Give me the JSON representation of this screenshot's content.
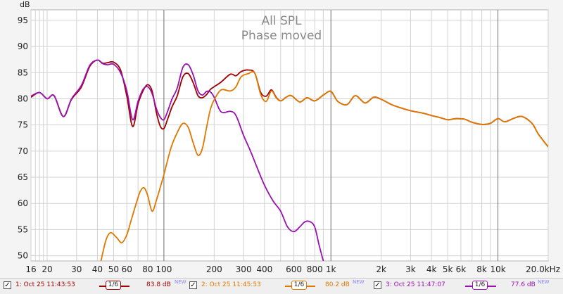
{
  "chart_data": {
    "type": "line",
    "title": "All SPL",
    "subtitle": "Phase moved",
    "ylabel": "dB",
    "xscale": "log",
    "xlim": [
      16,
      20000
    ],
    "ylim": [
      49,
      97
    ],
    "yticks": [
      50,
      55,
      60,
      65,
      70,
      75,
      80,
      85,
      90,
      95
    ],
    "xtick_labels": [
      {
        "v": 16,
        "t": "16"
      },
      {
        "v": 20,
        "t": "20"
      },
      {
        "v": 30,
        "t": "30"
      },
      {
        "v": 40,
        "t": "40"
      },
      {
        "v": 50,
        "t": "50"
      },
      {
        "v": 60,
        "t": "60"
      },
      {
        "v": 80,
        "t": "80"
      },
      {
        "v": 100,
        "t": "100"
      },
      {
        "v": 200,
        "t": "200"
      },
      {
        "v": 300,
        "t": "300"
      },
      {
        "v": 400,
        "t": "400"
      },
      {
        "v": 600,
        "t": "600"
      },
      {
        "v": 800,
        "t": "800"
      },
      {
        "v": 1000,
        "t": "1k"
      },
      {
        "v": 2000,
        "t": "2k"
      },
      {
        "v": 3000,
        "t": "3k"
      },
      {
        "v": 4000,
        "t": "4k"
      },
      {
        "v": 5000,
        "t": "5k"
      },
      {
        "v": 6000,
        "t": "6k"
      },
      {
        "v": 8000,
        "t": "8k"
      },
      {
        "v": 10000,
        "t": "10k"
      },
      {
        "v": 20000,
        "t": "20.0kHz"
      }
    ],
    "grid": true,
    "legend_position": "bottom",
    "series": [
      {
        "name": "1: Oct 25 11:43:53",
        "color": "#a00000",
        "smoothing": "1/6",
        "level": "83.8 dB",
        "x": [
          16,
          18,
          20,
          22,
          25,
          28,
          32,
          36,
          40,
          43,
          46,
          50,
          55,
          60,
          65,
          70,
          75,
          80,
          85,
          90,
          95,
          100,
          105,
          112,
          120,
          130,
          140,
          150,
          160,
          170,
          180,
          190,
          200,
          220,
          250,
          270,
          290,
          320,
          350,
          380,
          410,
          440,
          470,
          500,
          540,
          580,
          650,
          720,
          800,
          900,
          1000,
          1100,
          1250,
          1400,
          1600,
          1800,
          2000,
          2300,
          2600,
          3000,
          3500,
          4000,
          4500,
          5000,
          5600,
          6300,
          7000,
          8000,
          9000,
          10000,
          11000,
          12500,
          14000,
          16000,
          17500,
          20000
        ],
        "y": [
          80.3,
          81.2,
          80,
          80.6,
          76.6,
          79.9,
          82.2,
          86.2,
          87.4,
          86.8,
          86.9,
          87,
          85.5,
          80.5,
          74.7,
          79,
          81.5,
          82.7,
          81.5,
          77.5,
          74.8,
          74.3,
          76,
          78.5,
          80.5,
          84.2,
          84.8,
          83,
          80.6,
          80.2,
          80.8,
          81.8,
          82.3,
          83.2,
          84.7,
          84.4,
          85.2,
          85.5,
          84.9,
          81.2,
          80.5,
          81.7,
          80.3,
          79.6,
          80.3,
          80.6,
          79.4,
          80.2,
          79.6,
          80.7,
          81.4,
          79.5,
          78.9,
          80.6,
          79.2,
          80.3,
          79.9,
          78.9,
          78.3,
          77.7,
          77.3,
          76.8,
          76.4,
          76,
          76.2,
          76.1,
          75.5,
          75.1,
          75.3,
          76.2,
          75.6,
          76.3,
          76.6,
          75.3,
          73.2,
          70.8
        ]
      },
      {
        "name": "2: Oct 25 11:45:53",
        "color": "#e07800",
        "smoothing": "1/6",
        "level": "80.2 dB",
        "x": [
          42,
          45,
          48,
          52,
          56,
          60,
          64,
          68,
          72,
          76,
          80,
          85,
          90,
          95,
          100,
          110,
          120,
          130,
          140,
          150,
          160,
          170,
          180,
          190,
          200,
          220,
          250,
          270,
          290,
          320,
          350,
          380,
          410,
          440,
          470,
          500,
          540,
          580,
          650,
          720,
          800,
          900,
          1000,
          1100,
          1250,
          1400,
          1600,
          1800,
          2000,
          2300,
          2600,
          3000,
          3500,
          4000,
          4500,
          5000,
          5600,
          6300,
          7000,
          8000,
          9000,
          10000,
          11000,
          12500,
          14000,
          16000,
          17500,
          20000
        ],
        "y": [
          49,
          53,
          54.4,
          53.5,
          52.5,
          54,
          57,
          59.8,
          62.2,
          63,
          61.5,
          58.5,
          60.5,
          63,
          65.5,
          70.5,
          73.5,
          75.3,
          74.5,
          71.5,
          69.2,
          70.5,
          74.5,
          78,
          79.8,
          81.7,
          81.5,
          82.3,
          84.2,
          84.8,
          84.9,
          80.8,
          79.5,
          81.5,
          80.2,
          79.6,
          80.3,
          80.6,
          79.4,
          80.2,
          79.6,
          80.7,
          81.4,
          79.5,
          78.9,
          80.6,
          79.2,
          80.3,
          79.9,
          78.9,
          78.3,
          77.7,
          77.3,
          76.8,
          76.4,
          76,
          76.2,
          76.1,
          75.5,
          75.1,
          75.3,
          76.2,
          75.6,
          76.3,
          76.6,
          75.3,
          73.2,
          70.8
        ]
      },
      {
        "name": "3: Oct 25 11:47:07",
        "color": "#9a10b0",
        "smoothing": "1/6",
        "level": "77.6 dB",
        "x": [
          16,
          18,
          20,
          22,
          25,
          28,
          32,
          36,
          40,
          43,
          46,
          50,
          55,
          60,
          65,
          70,
          75,
          80,
          85,
          90,
          95,
          100,
          105,
          112,
          120,
          130,
          140,
          150,
          160,
          170,
          180,
          190,
          200,
          220,
          250,
          270,
          300,
          330,
          360,
          400,
          450,
          500,
          550,
          600,
          650,
          700,
          750,
          800,
          850,
          900
        ],
        "y": [
          80.5,
          81.2,
          80,
          80.6,
          76.6,
          80,
          82.5,
          86.4,
          87.4,
          86.7,
          86.5,
          86.6,
          85,
          81.5,
          76,
          79.5,
          81.8,
          82.3,
          81,
          78.2,
          76.5,
          76,
          77.5,
          80,
          82,
          86,
          86.5,
          84.5,
          81.5,
          80.7,
          81.4,
          81.3,
          80.3,
          77.5,
          77.6,
          76.8,
          73,
          70,
          67,
          63.5,
          60.5,
          58.5,
          55.5,
          54.6,
          55.5,
          56.5,
          56.5,
          55.5,
          52,
          49
        ]
      }
    ]
  },
  "legend": [
    {
      "label": "1: Oct 25 11:43:53",
      "smoothing": "1/6",
      "level": "83.8 dB",
      "tag": "NEW",
      "check": "✓"
    },
    {
      "label": "2: Oct 25 11:45:53",
      "smoothing": "1/6",
      "level": "80.2 dB",
      "tag": "NEW",
      "check": "✓"
    },
    {
      "label": "3: Oct 25 11:47:07",
      "smoothing": "1/6",
      "level": "77.6 dB",
      "tag": "NEW",
      "check": "✓"
    }
  ]
}
